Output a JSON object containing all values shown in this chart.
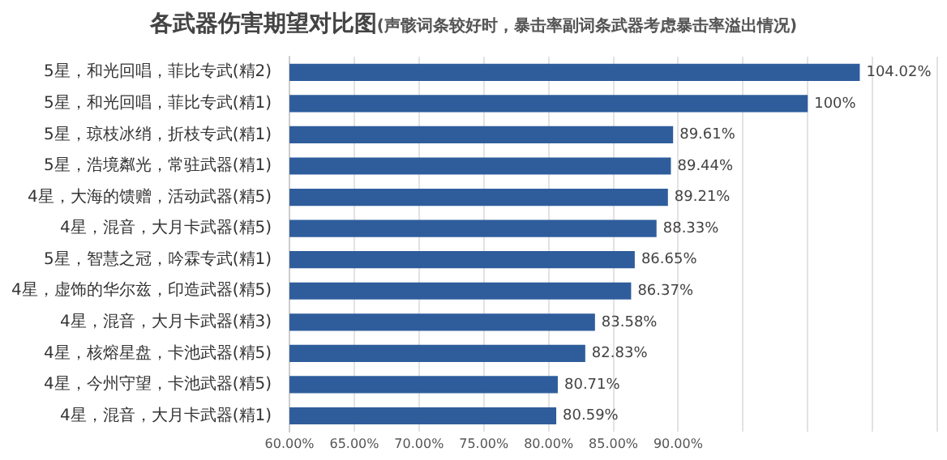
{
  "chart_data": {
    "type": "bar",
    "orientation": "horizontal",
    "title": "各武器伤害期望对比图",
    "subtitle": "(声骸词条较好时，暴击率副词条武器考虑暴击率溢出情况)",
    "categories": [
      "5星，和光回唱，菲比专武(精2)",
      "5星，和光回唱，菲比专武(精1)",
      "5星，琼枝冰绡，折枝专武(精1)",
      "5星，浩境粼光，常驻武器(精1)",
      "4星，大海的馈赠，活动武器(精5)",
      "4星，混音，大月卡武器(精5)",
      "5星，智慧之冠，吟霖专武(精1)",
      "4星，虚饰的华尔兹，印造武器(精5)",
      "4星，混音，大月卡武器(精3)",
      "4星，核熔星盘，卡池武器(精5)",
      "4星，今州守望，卡池武器(精5)",
      "4星，混音，大月卡武器(精1)"
    ],
    "values": [
      104.02,
      100,
      89.61,
      89.44,
      89.21,
      88.33,
      86.65,
      86.37,
      83.58,
      82.83,
      80.71,
      80.59
    ],
    "value_labels": [
      "104.02%",
      "100%",
      "89.61%",
      "89.44%",
      "89.21%",
      "88.33%",
      "86.65%",
      "86.37%",
      "83.58%",
      "82.83%",
      "80.71%",
      "80.59%"
    ],
    "color": "#2f5d9c",
    "xlim": [
      60,
      110
    ],
    "xticks": [
      {
        "value": 60,
        "label": "60.00%"
      },
      {
        "value": 65,
        "label": "65.00%"
      },
      {
        "value": 70,
        "label": "70.00%"
      },
      {
        "value": 75,
        "label": "75.00%"
      },
      {
        "value": 80,
        "label": "80.00%"
      },
      {
        "value": 85,
        "label": "85.00%"
      },
      {
        "value": 90,
        "label": "90.00%"
      },
      {
        "value": 95,
        "label": null
      },
      {
        "value": 100,
        "label": null
      },
      {
        "value": 105,
        "label": null
      },
      {
        "value": 110,
        "label": null
      }
    ],
    "grid": "x",
    "legend": false
  }
}
